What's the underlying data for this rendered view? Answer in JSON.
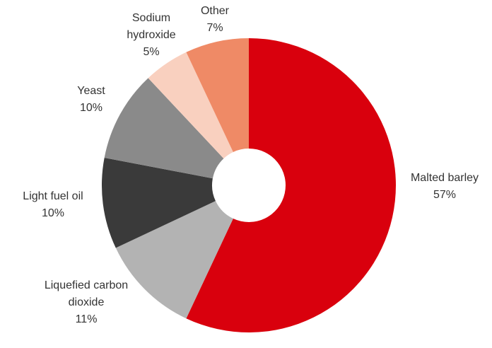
{
  "chart_data": {
    "type": "pie",
    "categories": [
      "Malted barley",
      "Liquefied carbon dioxide",
      "Light fuel oil",
      "Yeast",
      "Sodium hydroxide",
      "Other"
    ],
    "values": [
      57,
      11,
      10,
      10,
      5,
      7
    ],
    "value_labels": [
      "57%",
      "11%",
      "10%",
      "10%",
      "5%",
      "7%"
    ],
    "colors": [
      "#d9000d",
      "#b3b3b3",
      "#3a3a3a",
      "#8a8a8a",
      "#f9d0bf",
      "#ef8a66"
    ]
  }
}
